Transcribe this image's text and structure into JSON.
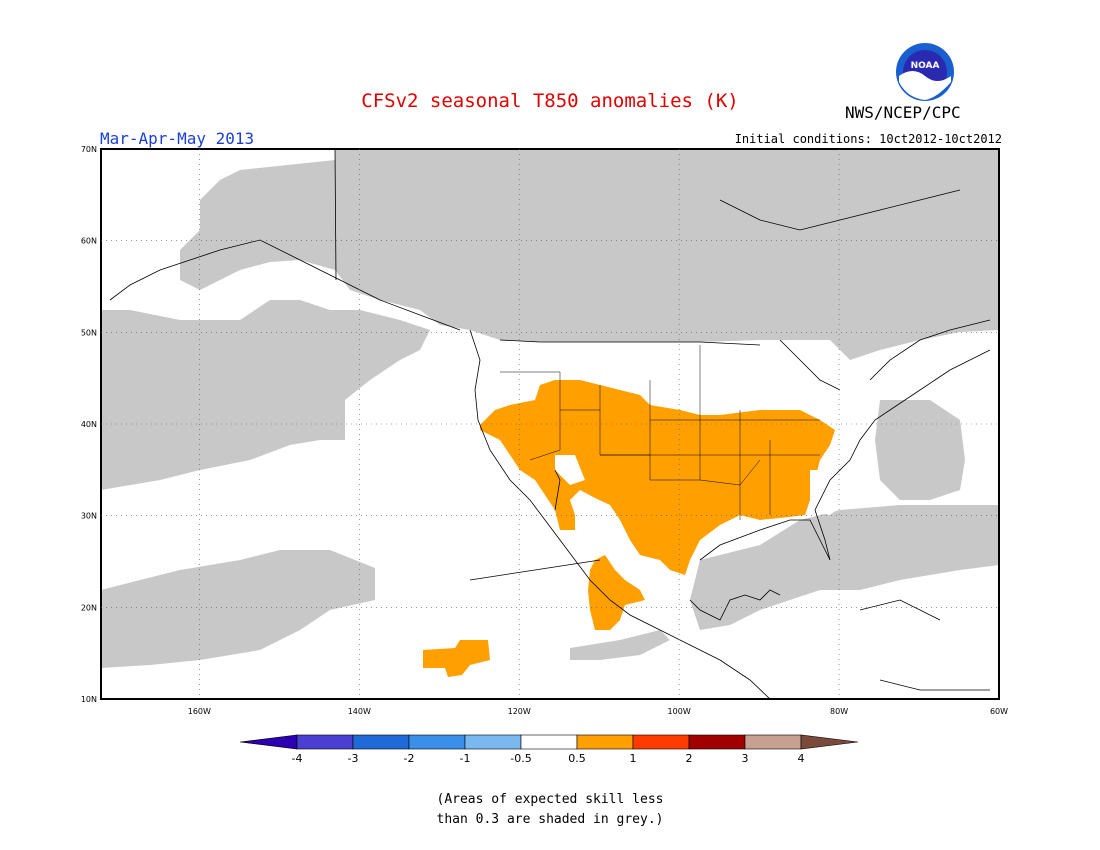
{
  "header": {
    "title": "CFSv2 seasonal T850 anomalies (K)",
    "agency": "NWS/NCEP/CPC",
    "logo_text": "NOAA",
    "season": "Mar-Apr-May 2013",
    "initial_conditions": "Initial conditions: 10ct2012-10ct2012"
  },
  "map": {
    "lat_labels": [
      "70N",
      "60N",
      "50N",
      "40N",
      "30N",
      "20N",
      "10N"
    ],
    "lon_labels": [
      "160W",
      "140W",
      "120W",
      "100W",
      "80W",
      "60W"
    ],
    "region": "North America and Eastern Pacific",
    "colors": {
      "skill_mask": "#c8c8c8",
      "positive_anomaly": "#ffa000",
      "background": "#ffffff"
    }
  },
  "colorbar": {
    "labels": [
      "-4",
      "-3",
      "-2",
      "-1",
      "-0.5",
      "0.5",
      "1",
      "2",
      "3",
      "4"
    ],
    "colors": [
      "#2a00b0",
      "#4a3fd0",
      "#1f6ad8",
      "#3a8fe8",
      "#7ab8f0",
      "#ffffff",
      "#ffa000",
      "#ff3b00",
      "#a00000",
      "#c8a090",
      "#7a4a3a"
    ]
  },
  "footnote": {
    "line1": "(Areas of expected skill less",
    "line2": "than 0.3 are shaded in grey.)"
  }
}
